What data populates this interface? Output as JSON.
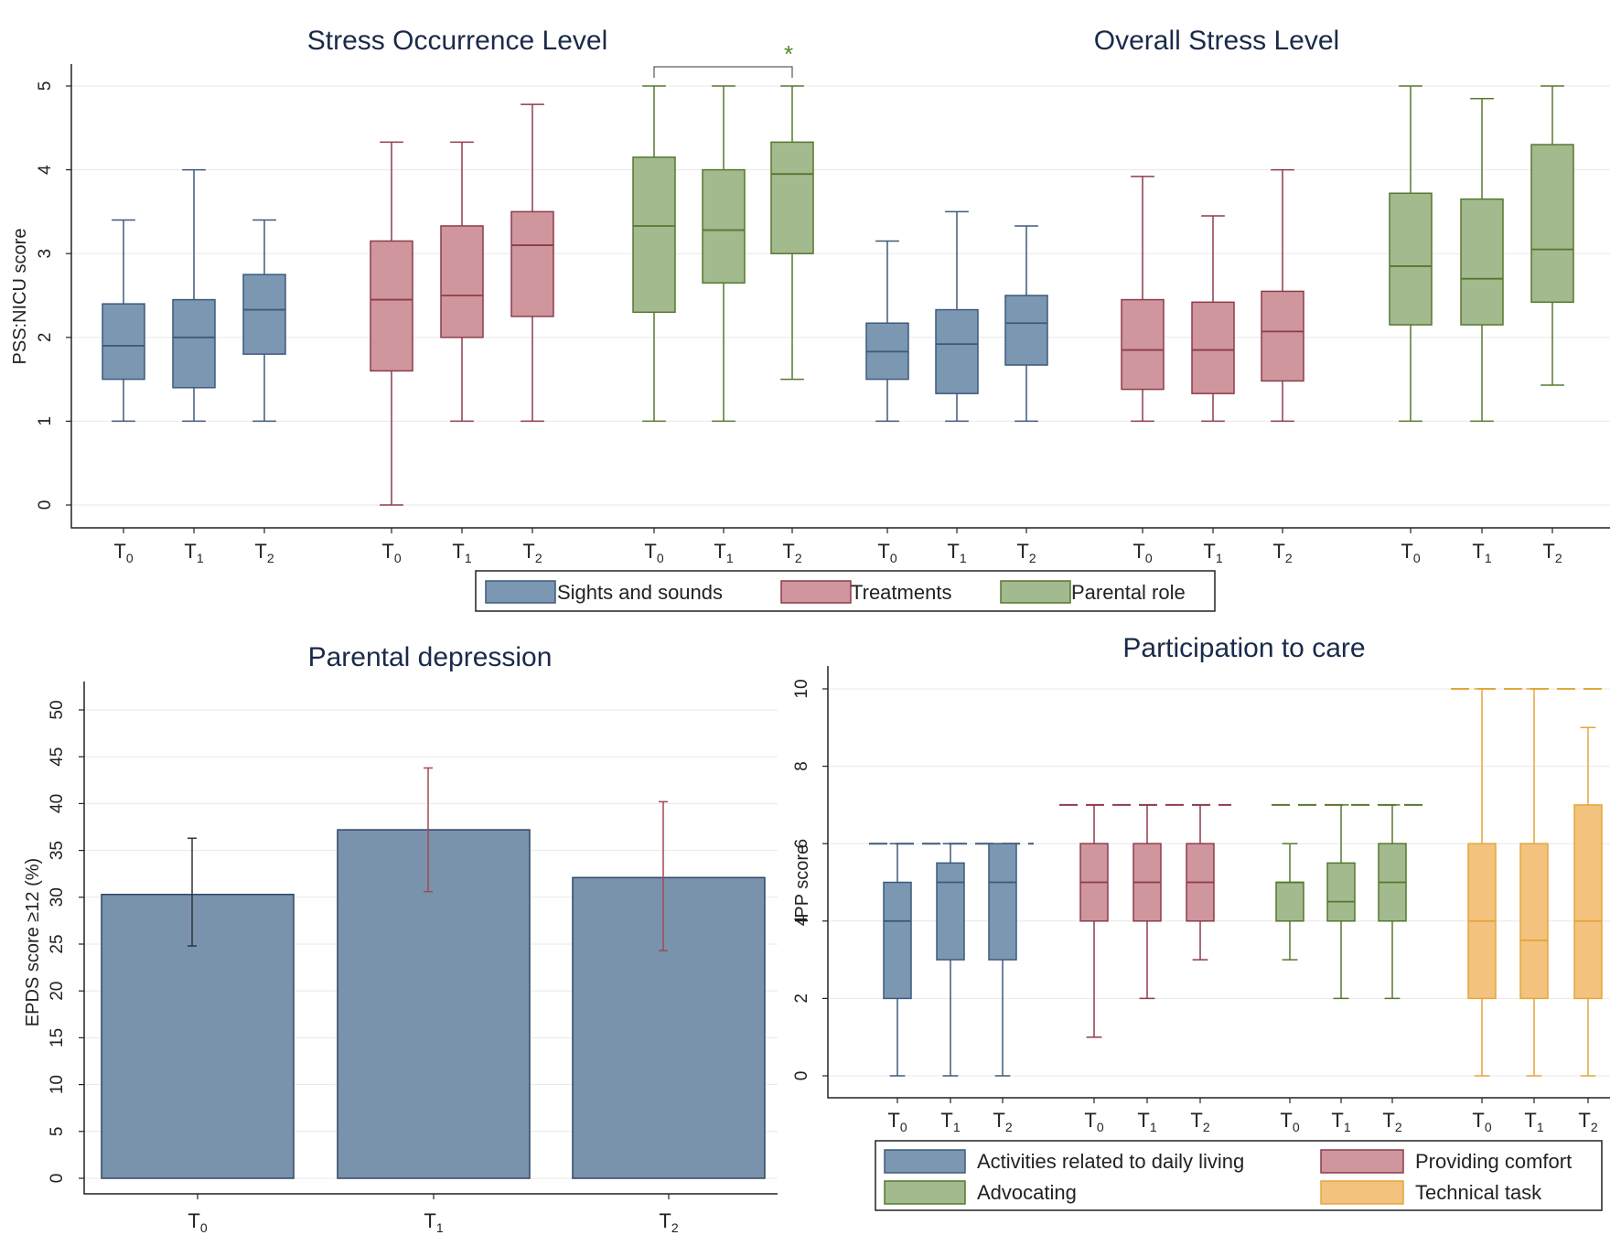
{
  "colors": {
    "blue_fill": "#7b97b2",
    "blue_line": "#3d5a7a",
    "red_fill": "#cf969d",
    "red_line": "#8e3c4a",
    "green_fill": "#a3b98e",
    "green_line": "#55782f",
    "orange_fill": "#f2c27e",
    "orange_line": "#e4a63a",
    "bar_fill": "#7a93ad",
    "bar_line": "#2e4764",
    "err_dark": "#333333",
    "err_red": "#a04a55",
    "star": "#4f8a2a"
  },
  "chart_data": [
    {
      "id": "stress",
      "type": "box",
      "titles": [
        "Stress Occurrence Level",
        "Overall Stress Level"
      ],
      "ylabel": "PSS:NICU score",
      "ylim": [
        0,
        5
      ],
      "yticks": [
        "0",
        "1",
        "2",
        "3",
        "4",
        "5"
      ],
      "significance_marker": "*",
      "legend": [
        "Sights and sounds",
        "Treatments",
        "Parental role"
      ],
      "groups": [
        {
          "panel": "Stress Occurrence Level",
          "series": "Sights and sounds",
          "color": "blue",
          "boxes": [
            {
              "x": "T0",
              "min": 1,
              "q1": 1.5,
              "median": 1.9,
              "q3": 2.4,
              "max": 3.4
            },
            {
              "x": "T1",
              "min": 1,
              "q1": 1.4,
              "median": 2.0,
              "q3": 2.45,
              "max": 4.0
            },
            {
              "x": "T2",
              "min": 1,
              "q1": 1.8,
              "median": 2.33,
              "q3": 2.75,
              "max": 3.4
            }
          ]
        },
        {
          "panel": "Stress Occurrence Level",
          "series": "Treatments",
          "color": "red",
          "boxes": [
            {
              "x": "T0",
              "min": 0,
              "q1": 1.6,
              "median": 2.45,
              "q3": 3.15,
              "max": 4.33
            },
            {
              "x": "T1",
              "min": 1,
              "q1": 2.0,
              "median": 2.5,
              "q3": 3.33,
              "max": 4.33
            },
            {
              "x": "T2",
              "min": 1,
              "q1": 2.25,
              "median": 3.1,
              "q3": 3.5,
              "max": 4.78
            }
          ]
        },
        {
          "panel": "Stress Occurrence Level",
          "series": "Parental role",
          "color": "green",
          "boxes": [
            {
              "x": "T0",
              "min": 1,
              "q1": 2.3,
              "median": 3.33,
              "q3": 4.15,
              "max": 5.0
            },
            {
              "x": "T1",
              "min": 1,
              "q1": 2.65,
              "median": 3.28,
              "q3": 4.0,
              "max": 5.0
            },
            {
              "x": "T2",
              "min": 1.5,
              "q1": 3.0,
              "median": 3.95,
              "q3": 4.33,
              "max": 5.0
            }
          ]
        },
        {
          "panel": "Overall Stress Level",
          "series": "Sights and sounds",
          "color": "blue",
          "boxes": [
            {
              "x": "T0",
              "min": 1,
              "q1": 1.5,
              "median": 1.83,
              "q3": 2.17,
              "max": 3.15
            },
            {
              "x": "T1",
              "min": 1,
              "q1": 1.33,
              "median": 1.92,
              "q3": 2.33,
              "max": 3.5
            },
            {
              "x": "T2",
              "min": 1,
              "q1": 1.67,
              "median": 2.17,
              "q3": 2.5,
              "max": 3.33
            }
          ]
        },
        {
          "panel": "Overall Stress Level",
          "series": "Treatments",
          "color": "red",
          "boxes": [
            {
              "x": "T0",
              "min": 1,
              "q1": 1.38,
              "median": 1.85,
              "q3": 2.45,
              "max": 3.92
            },
            {
              "x": "T1",
              "min": 1,
              "q1": 1.33,
              "median": 1.85,
              "q3": 2.42,
              "max": 3.45
            },
            {
              "x": "T2",
              "min": 1,
              "q1": 1.48,
              "median": 2.07,
              "q3": 2.55,
              "max": 4.0
            }
          ]
        },
        {
          "panel": "Overall Stress Level",
          "series": "Parental role",
          "color": "green",
          "boxes": [
            {
              "x": "T0",
              "min": 1,
              "q1": 2.15,
              "median": 2.85,
              "q3": 3.72,
              "max": 5.0
            },
            {
              "x": "T1",
              "min": 1,
              "q1": 2.15,
              "median": 2.7,
              "q3": 3.65,
              "max": 4.85
            },
            {
              "x": "T2",
              "min": 1.43,
              "q1": 2.42,
              "median": 3.05,
              "q3": 4.3,
              "max": 5.0
            }
          ]
        }
      ]
    },
    {
      "id": "depression",
      "type": "bar",
      "title": "Parental depression",
      "ylabel": "EPDS score ≥12 (%)",
      "ylim": [
        0,
        50
      ],
      "yticks": [
        "0",
        "5",
        "10",
        "15",
        "20",
        "25",
        "30",
        "35",
        "40",
        "45",
        "50"
      ],
      "categories": [
        "T0",
        "T1",
        "T2"
      ],
      "values": [
        30.3,
        37.2,
        32.1
      ],
      "ci_low": [
        24.8,
        30.6,
        24.3
      ],
      "ci_high": [
        36.3,
        43.8,
        40.2
      ]
    },
    {
      "id": "participation",
      "type": "box",
      "title": "Participation to care",
      "ylabel": "IPP score",
      "ylim": [
        0,
        10
      ],
      "yticks": [
        "0",
        "2",
        "4",
        "6",
        "8",
        "10"
      ],
      "legend": [
        "Activities related to daily living",
        "Providing comfort",
        "Advocating",
        "Technical task"
      ],
      "groups": [
        {
          "series": "Activities related to daily living",
          "color": "blue",
          "max_possible": 6,
          "boxes": [
            {
              "x": "T0",
              "min": 0,
              "q1": 2,
              "median": 4,
              "q3": 5,
              "max": 6
            },
            {
              "x": "T1",
              "min": 0,
              "q1": 3,
              "median": 5,
              "q3": 5.5,
              "max": 6
            },
            {
              "x": "T2",
              "min": 0,
              "q1": 3,
              "median": 5,
              "q3": 6,
              "max": 6
            }
          ]
        },
        {
          "series": "Providing comfort",
          "color": "red",
          "max_possible": 7,
          "boxes": [
            {
              "x": "T0",
              "min": 1,
              "q1": 4,
              "median": 5,
              "q3": 6,
              "max": 7
            },
            {
              "x": "T1",
              "min": 2,
              "q1": 4,
              "median": 5,
              "q3": 6,
              "max": 7
            },
            {
              "x": "T2",
              "min": 3,
              "q1": 4,
              "median": 5,
              "q3": 6,
              "max": 7
            }
          ]
        },
        {
          "series": "Advocating",
          "color": "green",
          "max_possible": 7,
          "boxes": [
            {
              "x": "T0",
              "min": 3,
              "q1": 4,
              "median": 5,
              "q3": 5,
              "max": 6
            },
            {
              "x": "T1",
              "min": 2,
              "q1": 4,
              "median": 4.5,
              "q3": 5.5,
              "max": 7
            },
            {
              "x": "T2",
              "min": 2,
              "q1": 4,
              "median": 5,
              "q3": 6,
              "max": 7
            }
          ]
        },
        {
          "series": "Technical task",
          "color": "orange",
          "max_possible": 10,
          "boxes": [
            {
              "x": "T0",
              "min": 0,
              "q1": 2,
              "median": 4,
              "q3": 6,
              "max": 10
            },
            {
              "x": "T1",
              "min": 0,
              "q1": 2,
              "median": 3.5,
              "q3": 6,
              "max": 10
            },
            {
              "x": "T2",
              "min": 0,
              "q1": 2,
              "median": 4,
              "q3": 7,
              "max": 9
            }
          ]
        }
      ]
    }
  ]
}
